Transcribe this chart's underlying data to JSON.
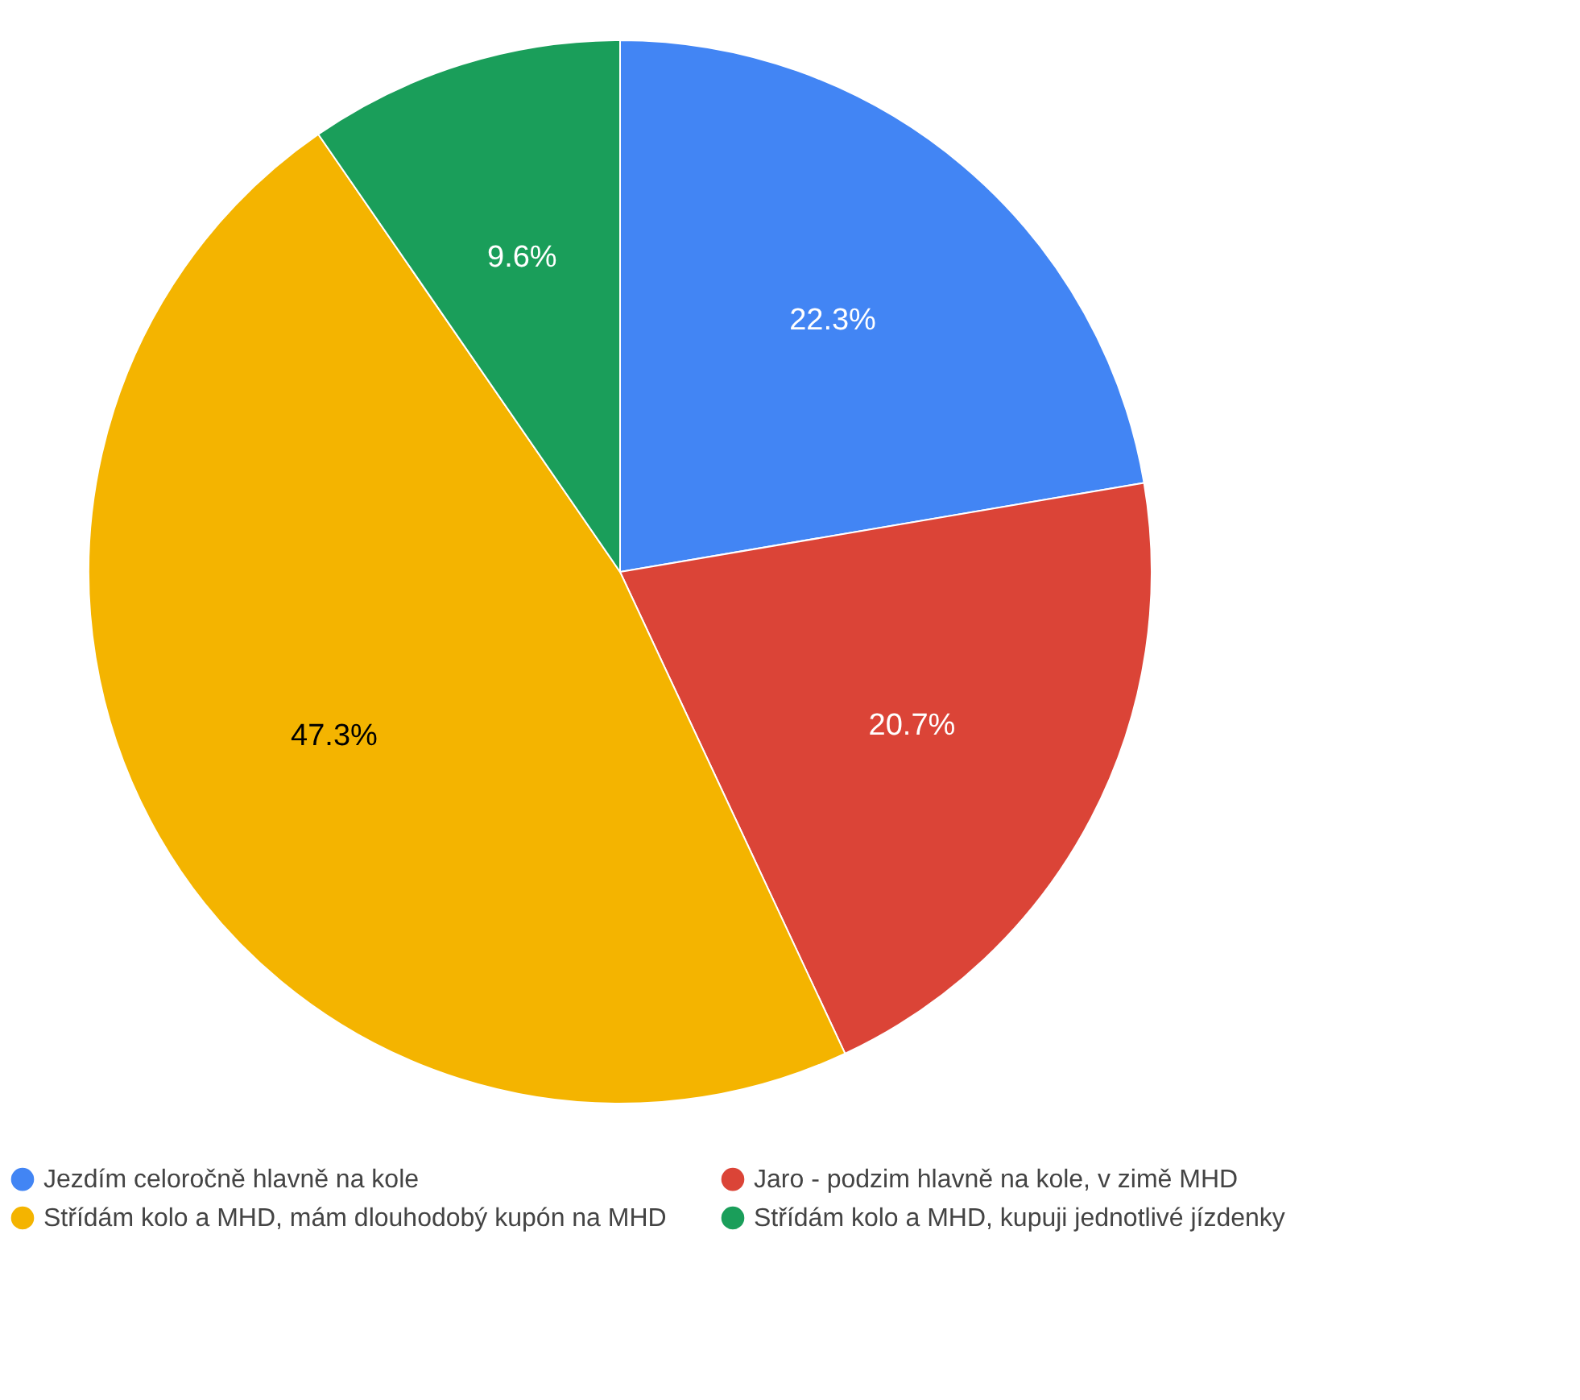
{
  "chart_data": {
    "type": "pie",
    "categories": [
      "Jezdím celoročně hlavně na kole",
      "Jaro - podzim hlavně na kole, v zimě MHD",
      "Střídám kolo a MHD, mám dlouhodobý kupón na MHD",
      "Střídám kolo a MHD, kupuji jednotlivé jízdenky"
    ],
    "values": [
      22.3,
      20.7,
      47.3,
      9.6
    ],
    "colors": [
      "#4285f4",
      "#db4437",
      "#f4b400",
      "#1a9e5a"
    ],
    "value_labels": [
      "22.3%",
      "20.7%",
      "47.3%",
      "9.6%"
    ],
    "legend": "bottom"
  }
}
